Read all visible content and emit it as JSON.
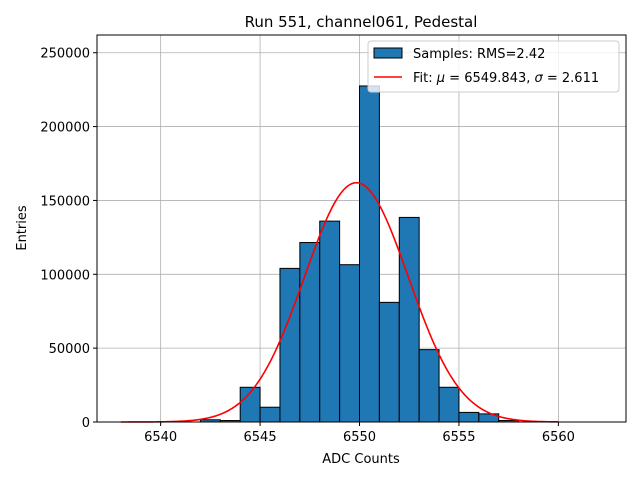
{
  "chart_data": {
    "type": "bar",
    "title": "Run 551, channel061, Pedestal",
    "xlabel": "ADC Counts",
    "ylabel": "Entries",
    "xlim": [
      6536.8,
      6563.4
    ],
    "ylim": [
      0,
      262000
    ],
    "xticks": [
      6540,
      6545,
      6550,
      6555,
      6560
    ],
    "yticks": [
      0,
      50000,
      100000,
      150000,
      200000,
      250000
    ],
    "ytick_labels": [
      "0",
      "50000",
      "100000",
      "150000",
      "200000",
      "250000"
    ],
    "grid": true,
    "legend_position": "top-right",
    "bar_color": "#1f77b4",
    "fit_color": "#ff0000",
    "histogram": {
      "name": "Samples: RMS=2.42",
      "bins": [
        {
          "left": 6542,
          "right": 6543,
          "value": 1500
        },
        {
          "left": 6543,
          "right": 6544,
          "value": 1000
        },
        {
          "left": 6544,
          "right": 6545,
          "value": 23500
        },
        {
          "left": 6545,
          "right": 6546,
          "value": 10000
        },
        {
          "left": 6546,
          "right": 6547,
          "value": 104000
        },
        {
          "left": 6547,
          "right": 6548,
          "value": 121500
        },
        {
          "left": 6548,
          "right": 6549,
          "value": 136000
        },
        {
          "left": 6549,
          "right": 6550,
          "value": 106500
        },
        {
          "left": 6550,
          "right": 6551,
          "value": 227500
        },
        {
          "left": 6551,
          "right": 6552,
          "value": 81000
        },
        {
          "left": 6552,
          "right": 6553,
          "value": 138500
        },
        {
          "left": 6553,
          "right": 6554,
          "value": 49000
        },
        {
          "left": 6554,
          "right": 6555,
          "value": 23500
        },
        {
          "left": 6555,
          "right": 6556,
          "value": 6500
        },
        {
          "left": 6556,
          "right": 6557,
          "value": 5500
        },
        {
          "left": 6557,
          "right": 6558,
          "value": 1000
        }
      ]
    },
    "fit": {
      "name_prefix": "Fit: ",
      "mu_symbol": "μ",
      "mu_text": " = 6549.843, ",
      "sigma_symbol": "σ",
      "sigma_text": " = 2.611",
      "mu": 6549.843,
      "sigma": 2.611,
      "amplitude": 162000,
      "x_range": [
        6538,
        6560
      ]
    }
  }
}
